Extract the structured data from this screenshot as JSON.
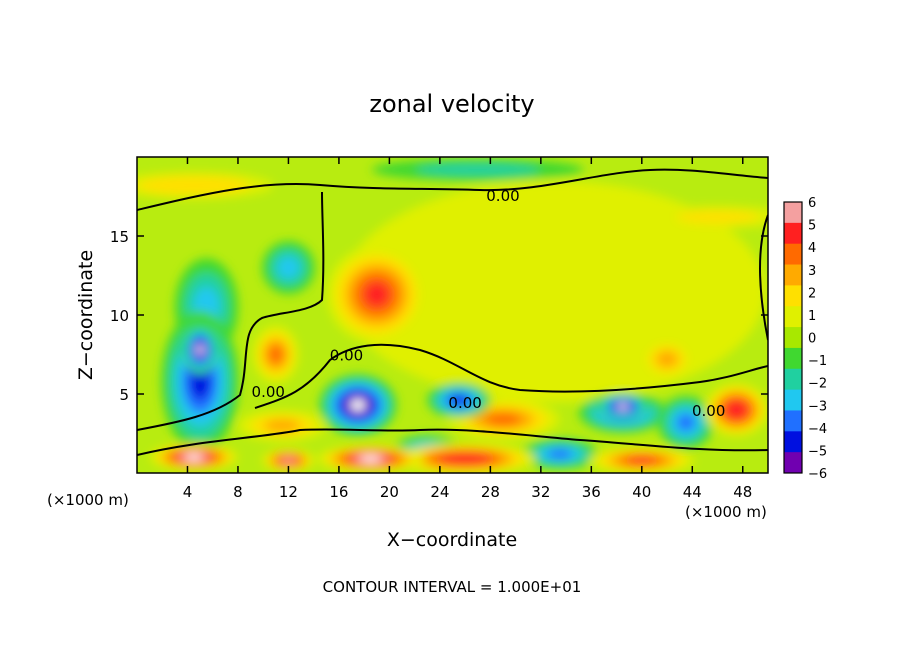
{
  "chart_data": {
    "type": "heatmap",
    "title": "zonal velocity",
    "xlabel": "X−coordinate",
    "ylabel": "Z−coordinate",
    "x_unit_label": "(×1000 m)",
    "x_unit_label_right": "(×1000 m)",
    "footer": "CONTOUR INTERVAL = 1.000E+01",
    "xlim": [
      0,
      50
    ],
    "ylim": [
      0,
      20
    ],
    "x_ticks": [
      4,
      8,
      12,
      16,
      20,
      24,
      28,
      32,
      36,
      40,
      44,
      48
    ],
    "x_tick_labels": [
      "4",
      "8",
      "12",
      "16",
      "20",
      "24",
      "28",
      "32",
      "36",
      "40",
      "44",
      "48"
    ],
    "y_ticks": [
      5,
      10,
      15
    ],
    "y_tick_labels": [
      "5",
      "10",
      "15"
    ],
    "colorbar": {
      "range": [
        -6,
        6
      ],
      "ticks": [
        6,
        5,
        4,
        3,
        2,
        1,
        0,
        -1,
        -2,
        -3,
        -4,
        -5,
        -6
      ],
      "tick_labels": [
        "6",
        "5",
        "4",
        "3",
        "2",
        "1",
        "0",
        "−1",
        "−2",
        "−3",
        "−4",
        "−5",
        "−6"
      ],
      "colors": [
        "#f4a0a0",
        "#ff2020",
        "#ff6a00",
        "#ffaa00",
        "#ffe000",
        "#e0f000",
        "#a8e800",
        "#40d830",
        "#20d0a0",
        "#20c8f0",
        "#2070ff",
        "#0010e0",
        "#7000b0"
      ]
    },
    "contour_labels": [
      {
        "text": "0.00",
        "x": 29,
        "y": 17.6
      },
      {
        "text": "0.00",
        "x": 16.6,
        "y": 7.5
      },
      {
        "text": "0.00",
        "x": 10.4,
        "y": 5.2
      },
      {
        "text": "0.00",
        "x": 26,
        "y": 4.5
      },
      {
        "text": "0.00",
        "x": 45.3,
        "y": 4.0
      }
    ],
    "features": [
      {
        "value": 6.5,
        "x": 4.5,
        "y": 1.0,
        "sx": 2.5,
        "sy": 0.6
      },
      {
        "value": 6.5,
        "x": 18.5,
        "y": 0.9,
        "sx": 3.0,
        "sy": 0.6
      },
      {
        "value": 6.0,
        "x": 12.0,
        "y": 0.8,
        "sx": 1.5,
        "sy": 0.5
      },
      {
        "value": 5.5,
        "x": 26.0,
        "y": 0.9,
        "sx": 4.0,
        "sy": 0.7
      },
      {
        "value": 5.0,
        "x": 40.0,
        "y": 0.8,
        "sx": 3.0,
        "sy": 0.6
      },
      {
        "value": 5.0,
        "x": 19.0,
        "y": 11.3,
        "sx": 2.8,
        "sy": 2.2
      },
      {
        "value": 4.0,
        "x": 11.0,
        "y": 7.5,
        "sx": 1.3,
        "sy": 1.3
      },
      {
        "value": 4.0,
        "x": 29.0,
        "y": 3.4,
        "sx": 3.2,
        "sy": 0.9
      },
      {
        "value": 5.5,
        "x": 47.5,
        "y": 4.0,
        "sx": 1.8,
        "sy": 1.2
      },
      {
        "value": 3.0,
        "x": 42.0,
        "y": 7.2,
        "sx": 1.5,
        "sy": 0.9
      },
      {
        "value": 2.5,
        "x": 4.5,
        "y": 18.2,
        "sx": 4.5,
        "sy": 0.6
      },
      {
        "value": 2.0,
        "x": 46.0,
        "y": 16.2,
        "sx": 4.0,
        "sy": 0.5
      },
      {
        "value": 3.0,
        "x": 11.5,
        "y": 3.0,
        "sx": 2.5,
        "sy": 0.7
      },
      {
        "value": -7.0,
        "x": 17.5,
        "y": 4.3,
        "sx": 2.2,
        "sy": 1.4
      },
      {
        "value": -6.5,
        "x": 5.0,
        "y": 7.8,
        "sx": 1.0,
        "sy": 1.1
      },
      {
        "value": -4.5,
        "x": 5.0,
        "y": 5.8,
        "sx": 2.2,
        "sy": 3.2
      },
      {
        "value": -2.5,
        "x": 5.5,
        "y": 10.5,
        "sx": 1.8,
        "sy": 2.2
      },
      {
        "value": -2.5,
        "x": 12.0,
        "y": 13.0,
        "sx": 1.5,
        "sy": 1.2
      },
      {
        "value": -5.0,
        "x": 38.5,
        "y": 3.8,
        "sx": 2.5,
        "sy": 0.9
      },
      {
        "value": -6.5,
        "x": 38.5,
        "y": 4.2,
        "sx": 1.4,
        "sy": 0.6
      },
      {
        "value": -4.5,
        "x": 25.5,
        "y": 4.6,
        "sx": 1.8,
        "sy": 0.8
      },
      {
        "value": -4.0,
        "x": 23.0,
        "y": 1.3,
        "sx": 2.0,
        "sy": 0.8
      },
      {
        "value": -4.0,
        "x": 33.5,
        "y": 1.2,
        "sx": 2.2,
        "sy": 0.7
      },
      {
        "value": -4.0,
        "x": 43.5,
        "y": 3.2,
        "sx": 1.6,
        "sy": 1.2
      },
      {
        "value": -1.5,
        "x": 27.0,
        "y": 19.2,
        "sx": 6.0,
        "sy": 0.5
      },
      {
        "value": 1.2,
        "x": 33.0,
        "y": 11.5,
        "sx": 12.0,
        "sy": 5.0
      }
    ]
  }
}
